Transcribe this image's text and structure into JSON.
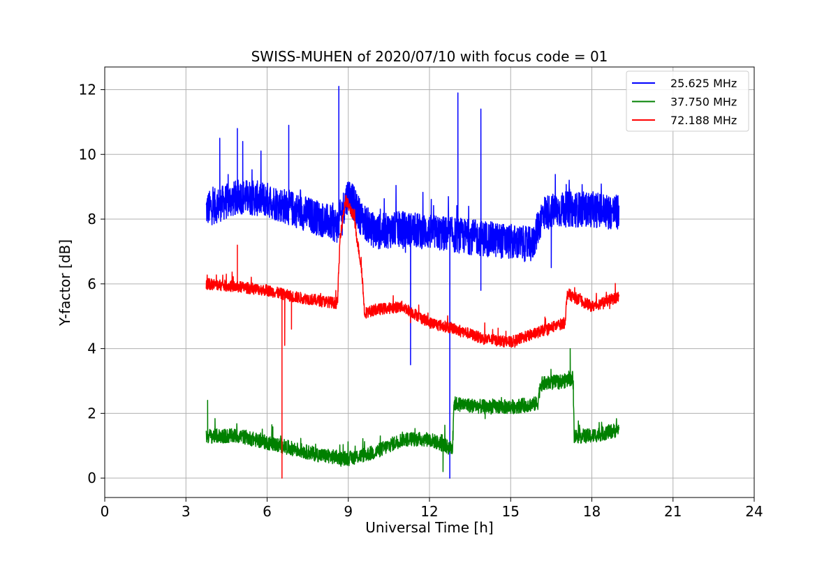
{
  "chart_data": {
    "type": "line",
    "title": "SWISS-MUHEN of 2020/07/10 with focus code = 01",
    "xlabel": "Universal Time [h]",
    "ylabel": "Y-factor [dB]",
    "xlim": [
      0,
      24
    ],
    "ylim": [
      -0.6,
      12.7
    ],
    "xticks": [
      0,
      3,
      6,
      9,
      12,
      15,
      18,
      21,
      24
    ],
    "yticks": [
      0,
      2,
      4,
      6,
      8,
      10,
      12
    ],
    "grid": true,
    "legend_position": "top-right",
    "series": [
      {
        "name": "25.625 MHz",
        "color": "#0000ff",
        "baseline": [
          [
            3.75,
            8.3
          ],
          [
            5,
            8.7
          ],
          [
            6,
            8.6
          ],
          [
            7,
            8.3
          ],
          [
            8,
            8.0
          ],
          [
            8.6,
            7.8
          ],
          [
            9.0,
            8.8
          ],
          [
            9.5,
            8.0
          ],
          [
            10,
            7.6
          ],
          [
            11,
            7.7
          ],
          [
            12,
            7.6
          ],
          [
            13,
            7.5
          ],
          [
            14,
            7.4
          ],
          [
            15,
            7.3
          ],
          [
            15.8,
            7.2
          ],
          [
            16.2,
            8.2
          ],
          [
            17,
            8.3
          ],
          [
            18,
            8.3
          ],
          [
            19,
            8.2
          ]
        ],
        "noise_amplitude": 1.1,
        "spikes": [
          [
            4.25,
            10.5
          ],
          [
            4.9,
            10.8
          ],
          [
            5.1,
            10.4
          ],
          [
            6.8,
            10.9
          ],
          [
            8.65,
            12.1
          ],
          [
            11.3,
            3.5
          ],
          [
            12.75,
            0.0
          ],
          [
            13.05,
            11.9
          ],
          [
            13.9,
            11.4
          ],
          [
            13.9,
            5.8
          ],
          [
            16.5,
            6.5
          ]
        ]
      },
      {
        "name": "37.750 MHz",
        "color": "#008000",
        "baseline": [
          [
            3.75,
            1.3
          ],
          [
            5,
            1.3
          ],
          [
            6,
            1.1
          ],
          [
            7,
            0.9
          ],
          [
            8,
            0.7
          ],
          [
            9,
            0.6
          ],
          [
            10,
            0.8
          ],
          [
            11,
            1.2
          ],
          [
            12,
            1.2
          ],
          [
            12.85,
            0.9
          ],
          [
            12.9,
            2.3
          ],
          [
            14,
            2.2
          ],
          [
            15,
            2.2
          ],
          [
            16,
            2.3
          ],
          [
            16.1,
            2.9
          ],
          [
            17,
            3.0
          ],
          [
            17.3,
            3.1
          ],
          [
            17.35,
            1.3
          ],
          [
            18,
            1.3
          ],
          [
            19,
            1.5
          ]
        ],
        "noise_amplitude": 0.45,
        "spikes": [
          [
            3.8,
            2.4
          ],
          [
            17.2,
            4.0
          ],
          [
            12.5,
            0.2
          ]
        ]
      },
      {
        "name": "72.188 MHz",
        "color": "#ff0000",
        "baseline": [
          [
            3.75,
            6.0
          ],
          [
            5,
            5.9
          ],
          [
            6,
            5.8
          ],
          [
            7,
            5.6
          ],
          [
            8.6,
            5.4
          ],
          [
            8.7,
            7.5
          ],
          [
            8.9,
            8.6
          ],
          [
            9.2,
            8.1
          ],
          [
            9.5,
            6.4
          ],
          [
            9.6,
            5.1
          ],
          [
            10,
            5.2
          ],
          [
            11,
            5.3
          ],
          [
            12,
            4.8
          ],
          [
            13,
            4.6
          ],
          [
            14,
            4.3
          ],
          [
            15,
            4.2
          ],
          [
            16,
            4.5
          ],
          [
            17,
            4.8
          ],
          [
            17.1,
            5.7
          ],
          [
            18,
            5.3
          ],
          [
            19,
            5.6
          ]
        ],
        "noise_amplitude": 0.35,
        "spikes": [
          [
            4.9,
            7.2
          ],
          [
            6.55,
            0.0
          ],
          [
            6.65,
            4.1
          ],
          [
            6.9,
            4.6
          ],
          [
            11.3,
            4.8
          ]
        ]
      }
    ]
  }
}
